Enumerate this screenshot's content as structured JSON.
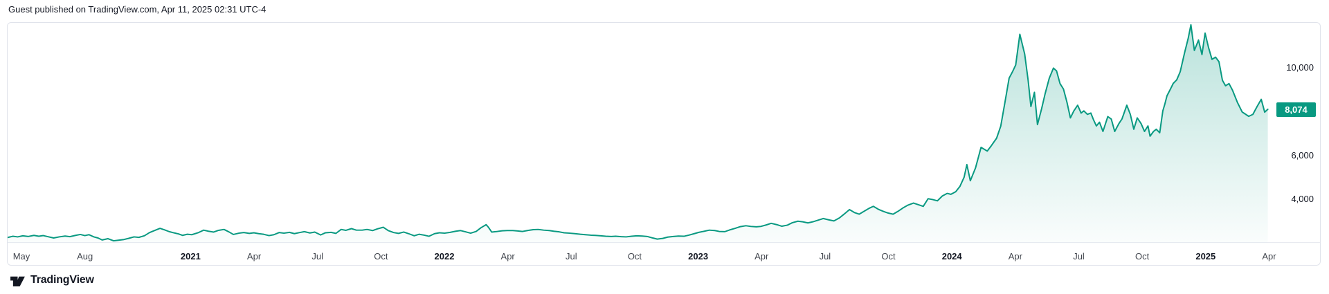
{
  "page": {
    "background": "#ffffff"
  },
  "header": {
    "publish_info": "Guest published on TradingView.com, Apr 11, 2025 02:31 UTC-4"
  },
  "footer": {
    "brand": "TradingView",
    "logo_icon": "tradingview-17-logo"
  },
  "colors": {
    "accent": "#089981",
    "axis_text": "#42464e",
    "axis_year_text": "#131722",
    "price_text": "#131722",
    "border": "#e0e3eb",
    "badge_text": "#ffffff"
  },
  "price_scale": {
    "ticks": [
      {
        "label": "10,000",
        "value": 10000
      },
      {
        "label": "6,000",
        "value": 6000
      },
      {
        "label": "4,000",
        "value": 4000
      }
    ],
    "last_price_badge": {
      "label": "8,074",
      "value": 8074
    }
  },
  "time_scale": {
    "ticks": [
      {
        "label": "May",
        "date": "2020-05-01",
        "year": false
      },
      {
        "label": "Aug",
        "date": "2020-08-01",
        "year": false
      },
      {
        "label": "2021",
        "date": "2021-01-01",
        "year": true
      },
      {
        "label": "Apr",
        "date": "2021-04-01",
        "year": false
      },
      {
        "label": "Jul",
        "date": "2021-07-01",
        "year": false
      },
      {
        "label": "Oct",
        "date": "2021-10-01",
        "year": false
      },
      {
        "label": "2022",
        "date": "2022-01-01",
        "year": true
      },
      {
        "label": "Apr",
        "date": "2022-04-01",
        "year": false
      },
      {
        "label": "Jul",
        "date": "2022-07-01",
        "year": false
      },
      {
        "label": "Oct",
        "date": "2022-10-01",
        "year": false
      },
      {
        "label": "2023",
        "date": "2023-01-01",
        "year": true
      },
      {
        "label": "Apr",
        "date": "2023-04-01",
        "year": false
      },
      {
        "label": "Jul",
        "date": "2023-07-01",
        "year": false
      },
      {
        "label": "Oct",
        "date": "2023-10-01",
        "year": false
      },
      {
        "label": "2024",
        "date": "2024-01-01",
        "year": true
      },
      {
        "label": "Apr",
        "date": "2024-04-01",
        "year": false
      },
      {
        "label": "Jul",
        "date": "2024-07-01",
        "year": false
      },
      {
        "label": "Oct",
        "date": "2024-10-01",
        "year": false
      },
      {
        "label": "2025",
        "date": "2025-01-01",
        "year": true
      },
      {
        "label": "Apr",
        "date": "2025-04-01",
        "year": false
      }
    ]
  },
  "chart_data": {
    "type": "area",
    "title": "",
    "interval": "weekly",
    "line_color": "#089981",
    "fill_color": "#089981",
    "legend_position": "none",
    "grid": false,
    "x_range": [
      "2020-04-11",
      "2025-04-01"
    ],
    "ylabel": "",
    "xlabel": "",
    "y_axis": {
      "visible_tick_values": [
        4000,
        6000,
        10000
      ],
      "approx_pane_range": [
        1950,
        12050
      ]
    },
    "last_price": 8074,
    "points": [
      [
        "2020-04-11",
        2200
      ],
      [
        "2020-04-19",
        2260
      ],
      [
        "2020-04-26",
        2230
      ],
      [
        "2020-05-03",
        2280
      ],
      [
        "2020-05-11",
        2250
      ],
      [
        "2020-05-19",
        2300
      ],
      [
        "2020-05-26",
        2260
      ],
      [
        "2020-06-02",
        2290
      ],
      [
        "2020-06-10",
        2230
      ],
      [
        "2020-06-17",
        2180
      ],
      [
        "2020-06-25",
        2230
      ],
      [
        "2020-07-03",
        2270
      ],
      [
        "2020-07-10",
        2240
      ],
      [
        "2020-07-18",
        2300
      ],
      [
        "2020-07-25",
        2340
      ],
      [
        "2020-08-01",
        2290
      ],
      [
        "2020-08-07",
        2330
      ],
      [
        "2020-08-14",
        2230
      ],
      [
        "2020-08-20",
        2180
      ],
      [
        "2020-08-26",
        2090
      ],
      [
        "2020-09-04",
        2150
      ],
      [
        "2020-09-12",
        2050
      ],
      [
        "2020-09-19",
        2080
      ],
      [
        "2020-09-27",
        2110
      ],
      [
        "2020-10-03",
        2160
      ],
      [
        "2020-10-11",
        2230
      ],
      [
        "2020-10-18",
        2210
      ],
      [
        "2020-10-26",
        2280
      ],
      [
        "2020-11-03",
        2430
      ],
      [
        "2020-11-10",
        2520
      ],
      [
        "2020-11-18",
        2620
      ],
      [
        "2020-11-25",
        2550
      ],
      [
        "2020-12-01",
        2470
      ],
      [
        "2020-12-07",
        2420
      ],
      [
        "2020-12-14",
        2370
      ],
      [
        "2020-12-20",
        2300
      ],
      [
        "2020-12-27",
        2350
      ],
      [
        "2021-01-03",
        2330
      ],
      [
        "2021-01-12",
        2420
      ],
      [
        "2021-01-20",
        2540
      ],
      [
        "2021-01-27",
        2490
      ],
      [
        "2021-02-04",
        2450
      ],
      [
        "2021-02-11",
        2530
      ],
      [
        "2021-02-19",
        2570
      ],
      [
        "2021-02-26",
        2460
      ],
      [
        "2021-03-02",
        2340
      ],
      [
        "2021-03-10",
        2400
      ],
      [
        "2021-03-17",
        2430
      ],
      [
        "2021-03-25",
        2390
      ],
      [
        "2021-04-01",
        2420
      ],
      [
        "2021-04-08",
        2380
      ],
      [
        "2021-04-15",
        2350
      ],
      [
        "2021-04-23",
        2290
      ],
      [
        "2021-04-30",
        2330
      ],
      [
        "2021-05-07",
        2430
      ],
      [
        "2021-05-14",
        2400
      ],
      [
        "2021-05-22",
        2440
      ],
      [
        "2021-05-29",
        2380
      ],
      [
        "2021-06-06",
        2430
      ],
      [
        "2021-06-13",
        2470
      ],
      [
        "2021-06-21",
        2410
      ],
      [
        "2021-06-28",
        2450
      ],
      [
        "2021-07-06",
        2320
      ],
      [
        "2021-07-13",
        2420
      ],
      [
        "2021-07-21",
        2440
      ],
      [
        "2021-07-28",
        2390
      ],
      [
        "2021-08-05",
        2570
      ],
      [
        "2021-08-12",
        2530
      ],
      [
        "2021-08-20",
        2610
      ],
      [
        "2021-08-27",
        2540
      ],
      [
        "2021-09-05",
        2540
      ],
      [
        "2021-09-12",
        2570
      ],
      [
        "2021-09-20",
        2520
      ],
      [
        "2021-09-27",
        2600
      ],
      [
        "2021-10-05",
        2670
      ],
      [
        "2021-10-12",
        2520
      ],
      [
        "2021-10-20",
        2430
      ],
      [
        "2021-10-27",
        2390
      ],
      [
        "2021-11-04",
        2450
      ],
      [
        "2021-11-11",
        2380
      ],
      [
        "2021-11-19",
        2280
      ],
      [
        "2021-11-26",
        2350
      ],
      [
        "2021-12-03",
        2310
      ],
      [
        "2021-12-10",
        2260
      ],
      [
        "2021-12-18",
        2380
      ],
      [
        "2021-12-25",
        2420
      ],
      [
        "2022-01-02",
        2400
      ],
      [
        "2022-01-10",
        2440
      ],
      [
        "2022-01-18",
        2490
      ],
      [
        "2022-01-25",
        2520
      ],
      [
        "2022-02-02",
        2460
      ],
      [
        "2022-02-09",
        2400
      ],
      [
        "2022-02-17",
        2480
      ],
      [
        "2022-02-24",
        2650
      ],
      [
        "2022-03-01",
        2790
      ],
      [
        "2022-03-04",
        2680
      ],
      [
        "2022-03-09",
        2450
      ],
      [
        "2022-03-17",
        2480
      ],
      [
        "2022-03-24",
        2510
      ],
      [
        "2022-04-01",
        2520
      ],
      [
        "2022-04-09",
        2520
      ],
      [
        "2022-04-16",
        2500
      ],
      [
        "2022-04-23",
        2480
      ],
      [
        "2022-05-01",
        2530
      ],
      [
        "2022-05-08",
        2560
      ],
      [
        "2022-05-15",
        2570
      ],
      [
        "2022-05-23",
        2540
      ],
      [
        "2022-05-31",
        2520
      ],
      [
        "2022-06-07",
        2490
      ],
      [
        "2022-06-15",
        2460
      ],
      [
        "2022-06-22",
        2420
      ],
      [
        "2022-06-30",
        2400
      ],
      [
        "2022-07-07",
        2380
      ],
      [
        "2022-07-15",
        2350
      ],
      [
        "2022-07-22",
        2330
      ],
      [
        "2022-07-30",
        2310
      ],
      [
        "2022-08-06",
        2300
      ],
      [
        "2022-08-14",
        2280
      ],
      [
        "2022-08-21",
        2260
      ],
      [
        "2022-08-29",
        2250
      ],
      [
        "2022-09-05",
        2260
      ],
      [
        "2022-09-13",
        2240
      ],
      [
        "2022-09-20",
        2230
      ],
      [
        "2022-09-28",
        2260
      ],
      [
        "2022-10-05",
        2280
      ],
      [
        "2022-10-13",
        2270
      ],
      [
        "2022-10-20",
        2250
      ],
      [
        "2022-10-28",
        2180
      ],
      [
        "2022-11-04",
        2130
      ],
      [
        "2022-11-12",
        2160
      ],
      [
        "2022-11-19",
        2220
      ],
      [
        "2022-11-27",
        2250
      ],
      [
        "2022-12-04",
        2270
      ],
      [
        "2022-12-12",
        2260
      ],
      [
        "2022-12-19",
        2310
      ],
      [
        "2022-12-27",
        2380
      ],
      [
        "2023-01-03",
        2440
      ],
      [
        "2023-01-11",
        2490
      ],
      [
        "2023-01-18",
        2540
      ],
      [
        "2023-01-26",
        2520
      ],
      [
        "2023-02-02",
        2480
      ],
      [
        "2023-02-10",
        2470
      ],
      [
        "2023-02-17",
        2550
      ],
      [
        "2023-02-25",
        2620
      ],
      [
        "2023-03-02",
        2700
      ],
      [
        "2023-03-10",
        2740
      ],
      [
        "2023-03-17",
        2710
      ],
      [
        "2023-03-25",
        2690
      ],
      [
        "2023-04-01",
        2710
      ],
      [
        "2023-04-09",
        2780
      ],
      [
        "2023-04-16",
        2850
      ],
      [
        "2023-04-24",
        2790
      ],
      [
        "2023-05-01",
        2720
      ],
      [
        "2023-05-09",
        2770
      ],
      [
        "2023-05-16",
        2880
      ],
      [
        "2023-05-24",
        2950
      ],
      [
        "2023-05-31",
        2920
      ],
      [
        "2023-06-08",
        2870
      ],
      [
        "2023-06-15",
        2920
      ],
      [
        "2023-06-23",
        3000
      ],
      [
        "2023-06-30",
        3070
      ],
      [
        "2023-07-08",
        3010
      ],
      [
        "2023-07-15",
        2960
      ],
      [
        "2023-07-23",
        3100
      ],
      [
        "2023-07-30",
        3280
      ],
      [
        "2023-08-07",
        3480
      ],
      [
        "2023-08-14",
        3350
      ],
      [
        "2023-08-21",
        3270
      ],
      [
        "2023-08-28",
        3400
      ],
      [
        "2023-09-05",
        3540
      ],
      [
        "2023-09-11",
        3630
      ],
      [
        "2023-09-19",
        3480
      ],
      [
        "2023-09-26",
        3390
      ],
      [
        "2023-10-02",
        3320
      ],
      [
        "2023-10-09",
        3270
      ],
      [
        "2023-10-16",
        3400
      ],
      [
        "2023-10-23",
        3550
      ],
      [
        "2023-10-30",
        3680
      ],
      [
        "2023-11-08",
        3780
      ],
      [
        "2023-11-15",
        3700
      ],
      [
        "2023-11-22",
        3630
      ],
      [
        "2023-11-29",
        3980
      ],
      [
        "2023-12-05",
        3940
      ],
      [
        "2023-12-12",
        3880
      ],
      [
        "2023-12-19",
        4100
      ],
      [
        "2023-12-26",
        4220
      ],
      [
        "2024-01-01",
        4180
      ],
      [
        "2024-01-08",
        4300
      ],
      [
        "2024-01-14",
        4540
      ],
      [
        "2024-01-20",
        4960
      ],
      [
        "2024-01-24",
        5540
      ],
      [
        "2024-01-29",
        4800
      ],
      [
        "2024-02-06",
        5390
      ],
      [
        "2024-02-14",
        6330
      ],
      [
        "2024-02-23",
        6160
      ],
      [
        "2024-02-28",
        6370
      ],
      [
        "2024-03-06",
        6750
      ],
      [
        "2024-03-12",
        7300
      ],
      [
        "2024-03-18",
        8400
      ],
      [
        "2024-03-24",
        9500
      ],
      [
        "2024-03-29",
        9800
      ],
      [
        "2024-04-03",
        10100
      ],
      [
        "2024-04-09",
        11510
      ],
      [
        "2024-04-16",
        10600
      ],
      [
        "2024-04-21",
        9400
      ],
      [
        "2024-04-25",
        8200
      ],
      [
        "2024-04-30",
        8850
      ],
      [
        "2024-05-04",
        7370
      ],
      [
        "2024-05-10",
        8100
      ],
      [
        "2024-05-15",
        8790
      ],
      [
        "2024-05-21",
        9500
      ],
      [
        "2024-05-27",
        9960
      ],
      [
        "2024-06-01",
        9830
      ],
      [
        "2024-06-06",
        9250
      ],
      [
        "2024-06-11",
        9000
      ],
      [
        "2024-06-16",
        8400
      ],
      [
        "2024-06-21",
        7680
      ],
      [
        "2024-06-26",
        8000
      ],
      [
        "2024-07-01",
        8260
      ],
      [
        "2024-07-06",
        7900
      ],
      [
        "2024-07-10",
        8000
      ],
      [
        "2024-07-15",
        7840
      ],
      [
        "2024-07-20",
        7900
      ],
      [
        "2024-07-24",
        7580
      ],
      [
        "2024-07-28",
        7310
      ],
      [
        "2024-08-02",
        7480
      ],
      [
        "2024-08-07",
        7060
      ],
      [
        "2024-08-14",
        7740
      ],
      [
        "2024-08-19",
        7630
      ],
      [
        "2024-08-24",
        7060
      ],
      [
        "2024-08-30",
        7420
      ],
      [
        "2024-09-04",
        7630
      ],
      [
        "2024-09-11",
        8260
      ],
      [
        "2024-09-16",
        7840
      ],
      [
        "2024-09-21",
        7160
      ],
      [
        "2024-09-26",
        7680
      ],
      [
        "2024-10-01",
        7420
      ],
      [
        "2024-10-06",
        7060
      ],
      [
        "2024-10-11",
        7310
      ],
      [
        "2024-10-14",
        6840
      ],
      [
        "2024-10-19",
        7060
      ],
      [
        "2024-10-23",
        7160
      ],
      [
        "2024-10-28",
        7000
      ],
      [
        "2024-11-02",
        8000
      ],
      [
        "2024-11-05",
        8320
      ],
      [
        "2024-11-08",
        8690
      ],
      [
        "2024-11-13",
        9000
      ],
      [
        "2024-11-17",
        9260
      ],
      [
        "2024-11-22",
        9420
      ],
      [
        "2024-11-27",
        9790
      ],
      [
        "2024-12-03",
        10680
      ],
      [
        "2024-12-08",
        11310
      ],
      [
        "2024-12-12",
        11940
      ],
      [
        "2024-12-17",
        10770
      ],
      [
        "2024-12-23",
        11240
      ],
      [
        "2024-12-28",
        10580
      ],
      [
        "2025-01-02",
        11560
      ],
      [
        "2025-01-07",
        10900
      ],
      [
        "2025-01-12",
        10360
      ],
      [
        "2025-01-17",
        10460
      ],
      [
        "2025-01-22",
        10250
      ],
      [
        "2025-01-27",
        9400
      ],
      [
        "2025-02-01",
        9150
      ],
      [
        "2025-02-06",
        9250
      ],
      [
        "2025-02-11",
        8950
      ],
      [
        "2025-02-18",
        8400
      ],
      [
        "2025-02-25",
        7950
      ],
      [
        "2025-03-04",
        7750
      ],
      [
        "2025-03-10",
        7840
      ],
      [
        "2025-03-16",
        8200
      ],
      [
        "2025-03-22",
        8530
      ],
      [
        "2025-03-27",
        7940
      ],
      [
        "2025-04-01",
        8074
      ]
    ]
  }
}
